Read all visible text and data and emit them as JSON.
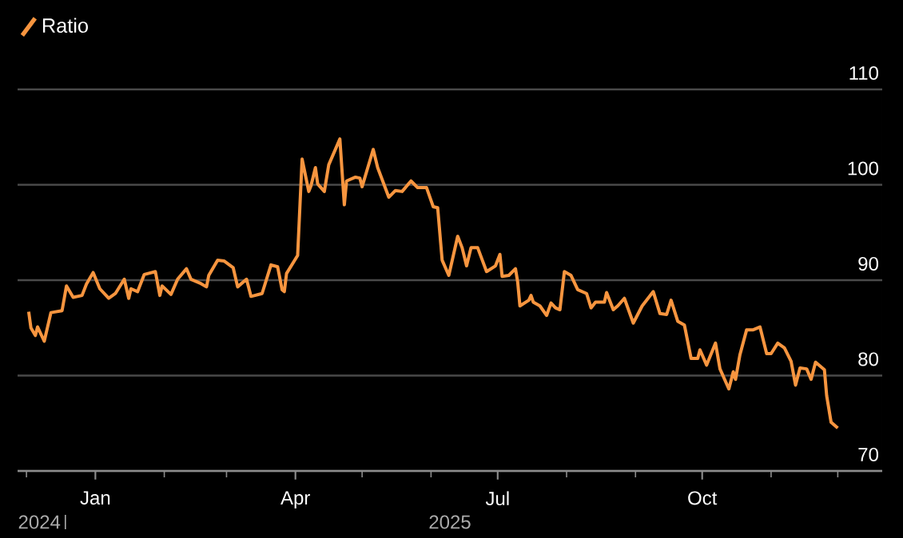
{
  "chart_data": {
    "type": "line",
    "series": [
      {
        "name": "Ratio",
        "color": "#f7953f",
        "x": [
          "2024-12-02",
          "2024-12-03",
          "2024-12-05",
          "2024-12-06",
          "2024-12-09",
          "2024-12-12",
          "2024-12-17",
          "2024-12-19",
          "2024-12-22",
          "2024-12-26",
          "2024-12-28",
          "2024-12-31",
          "2025-01-03",
          "2025-01-07",
          "2025-01-10",
          "2025-01-14",
          "2025-01-16",
          "2025-01-17",
          "2025-01-20",
          "2025-01-23",
          "2025-01-28",
          "2025-01-30",
          "2025-01-31",
          "2025-02-04",
          "2025-02-07",
          "2025-02-11",
          "2025-02-13",
          "2025-02-17",
          "2025-02-20",
          "2025-02-21",
          "2025-02-25",
          "2025-02-28",
          "2025-03-04",
          "2025-03-06",
          "2025-03-10",
          "2025-03-12",
          "2025-03-17",
          "2025-03-21",
          "2025-03-24",
          "2025-03-26",
          "2025-03-27",
          "2025-03-28",
          "2025-04-02",
          "2025-04-04",
          "2025-04-07",
          "2025-04-08",
          "2025-04-10",
          "2025-04-11",
          "2025-04-14",
          "2025-04-16",
          "2025-04-21",
          "2025-04-23",
          "2025-04-24",
          "2025-04-28",
          "2025-04-30",
          "2025-05-01",
          "2025-05-06",
          "2025-05-08",
          "2025-05-13",
          "2025-05-16",
          "2025-05-19",
          "2025-05-23",
          "2025-05-26",
          "2025-05-30",
          "2025-06-02",
          "2025-06-04",
          "2025-06-06",
          "2025-06-09",
          "2025-06-13",
          "2025-06-15",
          "2025-06-17",
          "2025-06-19",
          "2025-06-22",
          "2025-06-26",
          "2025-06-30",
          "2025-07-02",
          "2025-07-03",
          "2025-07-06",
          "2025-07-09",
          "2025-07-10",
          "2025-07-11",
          "2025-07-15",
          "2025-07-16",
          "2025-07-17",
          "2025-07-20",
          "2025-07-23",
          "2025-07-25",
          "2025-07-27",
          "2025-07-29",
          "2025-07-31",
          "2025-08-03",
          "2025-08-06",
          "2025-08-10",
          "2025-08-12",
          "2025-08-14",
          "2025-08-18",
          "2025-08-19",
          "2025-08-22",
          "2025-08-24",
          "2025-08-27",
          "2025-08-31",
          "2025-09-04",
          "2025-09-09",
          "2025-09-12",
          "2025-09-15",
          "2025-09-17",
          "2025-09-20",
          "2025-09-23",
          "2025-09-26",
          "2025-09-29",
          "2025-09-30",
          "2025-10-03",
          "2025-10-07",
          "2025-10-09",
          "2025-10-13",
          "2025-10-15",
          "2025-10-16",
          "2025-10-18",
          "2025-10-21",
          "2025-10-24",
          "2025-10-27",
          "2025-10-30",
          "2025-11-01",
          "2025-11-04",
          "2025-11-07",
          "2025-11-10",
          "2025-11-12",
          "2025-11-14",
          "2025-11-17",
          "2025-11-19",
          "2025-11-21",
          "2025-11-25",
          "2025-11-26",
          "2025-11-28",
          "2025-12-01"
        ],
        "values": [
          86.7,
          85.0,
          84.2,
          85.1,
          83.6,
          86.6,
          86.8,
          89.4,
          88.2,
          88.4,
          89.6,
          90.8,
          89.1,
          88.1,
          88.6,
          90.1,
          88.1,
          89.1,
          88.8,
          90.6,
          90.9,
          88.4,
          89.4,
          88.5,
          90.1,
          91.2,
          90.1,
          89.7,
          89.3,
          90.5,
          92.1,
          92.0,
          91.3,
          89.3,
          90.1,
          88.3,
          88.6,
          91.6,
          91.4,
          89.0,
          88.8,
          90.7,
          92.6,
          102.7,
          99.3,
          99.9,
          101.8,
          100.1,
          99.3,
          102.1,
          104.8,
          97.9,
          100.4,
          100.8,
          100.7,
          99.8,
          103.7,
          101.8,
          98.7,
          99.4,
          99.3,
          100.4,
          99.7,
          99.7,
          97.7,
          97.6,
          92.1,
          90.5,
          94.6,
          93.4,
          91.5,
          93.4,
          93.4,
          90.9,
          91.5,
          92.7,
          90.4,
          90.5,
          91.2,
          89.8,
          87.3,
          87.9,
          88.4,
          87.7,
          87.3,
          86.3,
          87.6,
          87.1,
          86.9,
          90.9,
          90.5,
          89.0,
          88.6,
          87.1,
          87.7,
          87.7,
          88.7,
          86.9,
          87.3,
          88.1,
          85.5,
          87.3,
          88.8,
          86.5,
          86.4,
          87.9,
          85.7,
          85.3,
          81.8,
          81.8,
          82.7,
          81.1,
          83.4,
          80.7,
          78.6,
          80.4,
          79.6,
          82.2,
          84.8,
          84.8,
          85.1,
          82.3,
          82.3,
          83.4,
          82.9,
          81.5,
          79.0,
          80.8,
          80.7,
          79.6,
          81.4,
          80.6,
          77.9,
          75.1,
          74.5
        ]
      }
    ],
    "xlim": [
      "2024-11-27",
      "2025-12-21"
    ],
    "xticks": [
      {
        "value": "2024-12-01",
        "label": null
      },
      {
        "value": "2025-01-01",
        "label": "Jan"
      },
      {
        "value": "2025-02-01",
        "label": null
      },
      {
        "value": "2025-03-01",
        "label": null
      },
      {
        "value": "2025-04-01",
        "label": "Apr"
      },
      {
        "value": "2025-05-01",
        "label": null
      },
      {
        "value": "2025-06-01",
        "label": null
      },
      {
        "value": "2025-07-01",
        "label": "Jul"
      },
      {
        "value": "2025-08-01",
        "label": null
      },
      {
        "value": "2025-09-01",
        "label": null
      },
      {
        "value": "2025-10-01",
        "label": "Oct"
      },
      {
        "value": "2025-11-01",
        "label": null
      },
      {
        "value": "2025-12-01",
        "label": null
      }
    ],
    "ylim": [
      70,
      110
    ],
    "yticks": [
      70,
      80,
      90,
      100,
      110
    ],
    "grid": "y",
    "legend": "top left",
    "annotations": [
      "2024",
      "2025"
    ]
  }
}
